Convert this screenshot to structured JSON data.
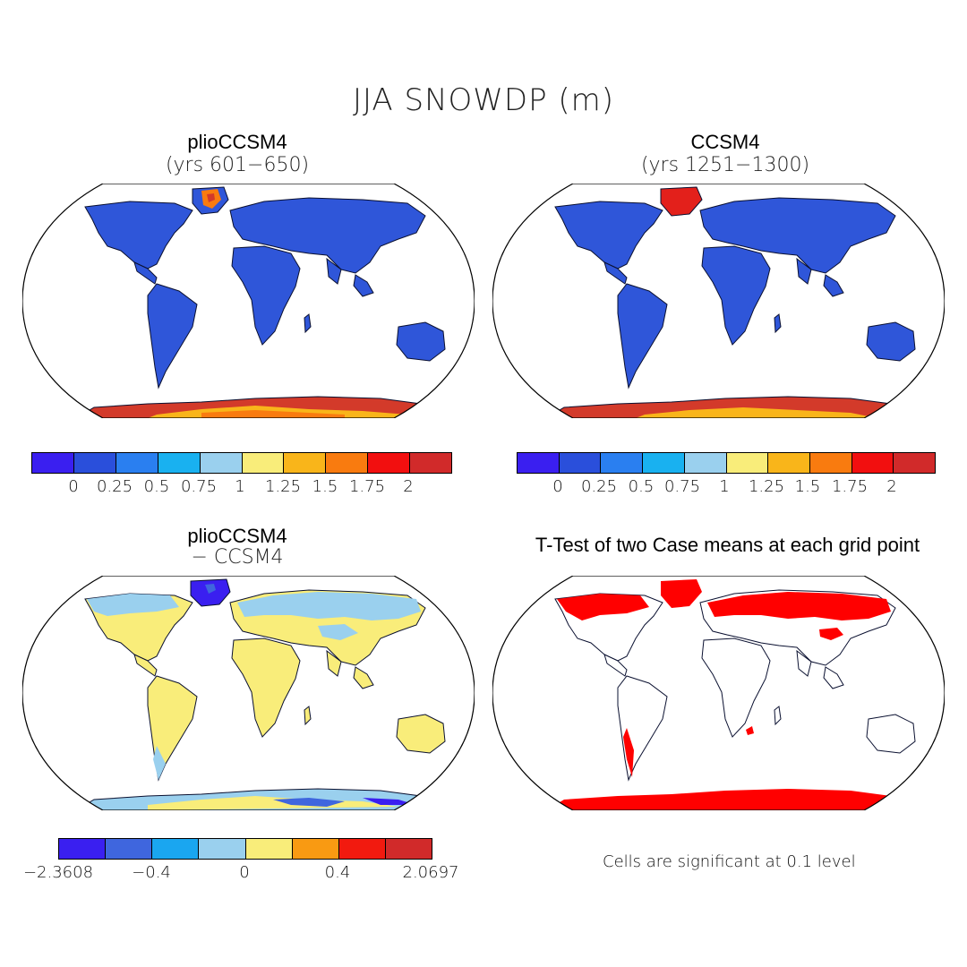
{
  "title": "JJA SNOWDP (m)",
  "panels": [
    {
      "title": "plioCCSM4",
      "subtitle": "(yrs 601−650)"
    },
    {
      "title": "CCSM4",
      "subtitle": "(yrs 1251−1300)"
    },
    {
      "title": "plioCCSM4",
      "subtitle": "− CCSM4"
    },
    {
      "title": "T-Test of two Case means at each grid point",
      "subtitle": ""
    }
  ],
  "colorbars": {
    "abs": {
      "colors": [
        "#3a1ff0",
        "#2a4fdb",
        "#2a7ff0",
        "#19b1f0",
        "#9ad0ee",
        "#f9ed7a",
        "#f9b51a",
        "#f97b0f",
        "#f20f0f",
        "#d12a2a"
      ],
      "ticks": [
        "0",
        "0.25",
        "0.5",
        "0.75",
        "1",
        "1.25",
        "1.5",
        "1.75",
        "2"
      ]
    },
    "diff": {
      "colors": [
        "#3a1ff0",
        "#3f66de",
        "#1aa6f0",
        "#9ad0ee",
        "#f9ed7a",
        "#f99a12",
        "#f21a0f",
        "#d12a2a"
      ],
      "ticks": [
        "−2.3608",
        "−0.4",
        "0",
        "0.4",
        "2.0697"
      ]
    }
  },
  "note": "Cells are significant at 0.1 level",
  "legend_colors": {
    "land_abs": "#2f56d9",
    "antarctica": "#d33a2a",
    "diff_land": "#f9ed7a",
    "diff_north": "#9ad0ee",
    "ttest_sig": "#ff0000"
  }
}
